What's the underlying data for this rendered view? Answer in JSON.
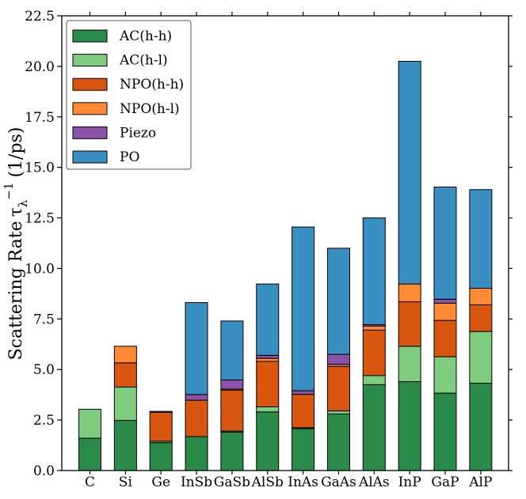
{
  "chart_data": {
    "type": "bar",
    "stacked": true,
    "title": "",
    "xlabel": "",
    "ylabel": "Scattering Rate",
    "ylabel_symbol": "τ",
    "ylabel_subscript": "λ",
    "ylabel_superscript": "−1",
    "ylabel_unit": "(1/ps)",
    "ylim": [
      0,
      22.5
    ],
    "yticks": [
      "0.0",
      "2.5",
      "5.0",
      "7.5",
      "10.0",
      "12.5",
      "15.0",
      "17.5",
      "20.0",
      "22.5"
    ],
    "grid": false,
    "legend_position": "top-left",
    "categories": [
      "C",
      "Si",
      "Ge",
      "InSb",
      "GaSb",
      "AlSb",
      "InAs",
      "GaAs",
      "AlAs",
      "InP",
      "GaP",
      "AlP"
    ],
    "series": [
      {
        "name": "AC(h-h)",
        "color": "#2a8a4a",
        "values": [
          1.6,
          2.48,
          1.38,
          1.68,
          1.9,
          2.9,
          2.08,
          2.8,
          4.25,
          4.4,
          3.83,
          4.32
        ]
      },
      {
        "name": "AC(h-l)",
        "color": "#7fcc7f",
        "values": [
          1.43,
          1.65,
          0.07,
          0.0,
          0.05,
          0.25,
          0.04,
          0.15,
          0.45,
          1.75,
          1.8,
          2.56
        ]
      },
      {
        "name": "NPO(h-h)",
        "color": "#d8560f",
        "values": [
          0.0,
          1.2,
          1.43,
          1.8,
          2.03,
          2.25,
          1.65,
          2.2,
          2.25,
          2.2,
          1.8,
          1.32
        ]
      },
      {
        "name": "NPO(h-l)",
        "color": "#ff8a33",
        "values": [
          0.0,
          0.82,
          0.0,
          0.0,
          0.05,
          0.15,
          0.0,
          0.1,
          0.2,
          0.88,
          0.85,
          0.82
        ]
      },
      {
        "name": "Piezo",
        "color": "#8c52a8",
        "values": [
          0.0,
          0.0,
          0.05,
          0.28,
          0.45,
          0.15,
          0.18,
          0.5,
          0.07,
          0.0,
          0.2,
          0.0
        ]
      },
      {
        "name": "PO",
        "color": "#3a8fc2",
        "values": [
          0.0,
          0.0,
          0.0,
          4.55,
          2.92,
          3.53,
          8.1,
          5.25,
          5.28,
          11.02,
          5.55,
          4.88
        ]
      }
    ]
  }
}
